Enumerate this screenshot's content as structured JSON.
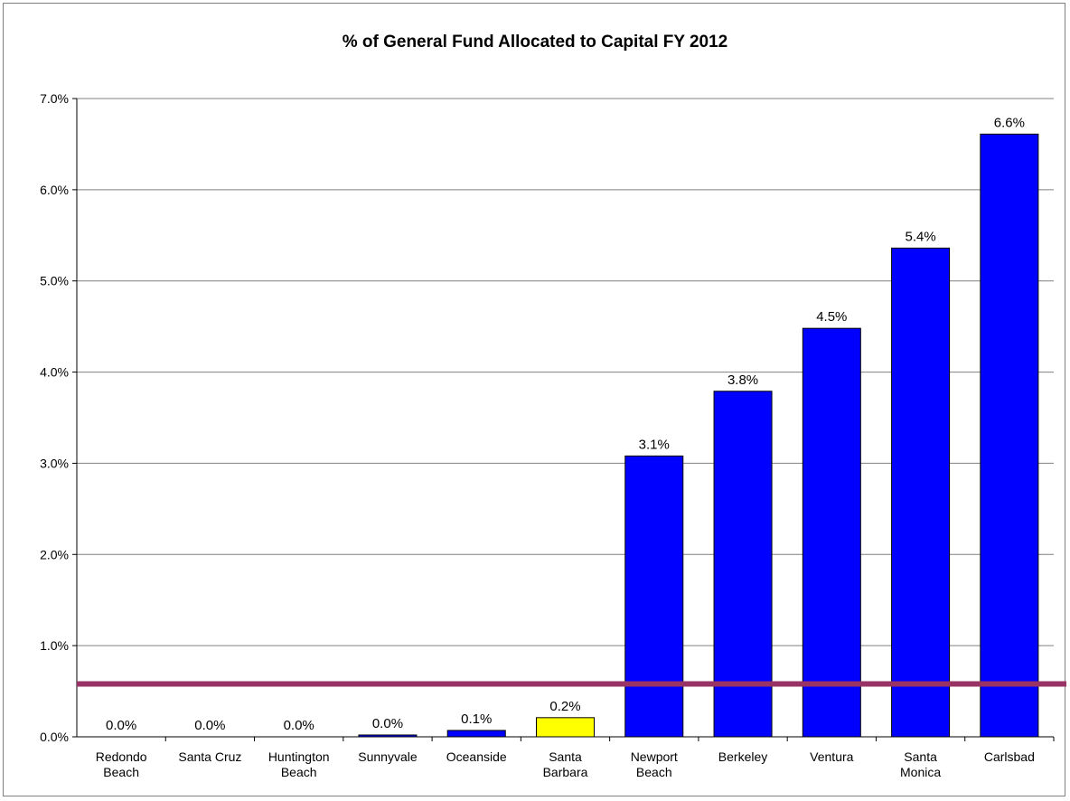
{
  "chart_data": {
    "type": "bar",
    "title": "% of General Fund Allocated to Capital FY 2012",
    "xlabel": "",
    "ylabel": "",
    "ylim": [
      0,
      7
    ],
    "yticks": [
      "0.0%",
      "1.0%",
      "2.0%",
      "3.0%",
      "4.0%",
      "5.0%",
      "6.0%",
      "7.0%"
    ],
    "grid": true,
    "categories": [
      [
        "Redondo",
        "Beach"
      ],
      [
        "Santa Cruz"
      ],
      [
        "Huntington",
        "Beach"
      ],
      [
        "Sunnyvale"
      ],
      [
        "Oceanside"
      ],
      [
        "Santa",
        "Barbara"
      ],
      [
        "Newport",
        "Beach"
      ],
      [
        "Berkeley"
      ],
      [
        "Ventura"
      ],
      [
        "Santa",
        "Monica"
      ],
      [
        "Carlsbad"
      ]
    ],
    "values": [
      0.0,
      0.0,
      0.0,
      0.02,
      0.07,
      0.21,
      3.08,
      3.79,
      4.48,
      5.36,
      6.61
    ],
    "data_labels": [
      "0.0%",
      "0.0%",
      "0.0%",
      "0.0%",
      "0.1%",
      "0.2%",
      "3.1%",
      "3.8%",
      "4.5%",
      "5.4%",
      "6.6%"
    ],
    "bar_colors": [
      "#0000ff",
      "#0000ff",
      "#0000ff",
      "#0000ff",
      "#0000ff",
      "#ffff00",
      "#0000ff",
      "#0000ff",
      "#0000ff",
      "#0000ff",
      "#0000ff"
    ],
    "reference_line": {
      "value": 0.58,
      "color": "#993366"
    }
  }
}
